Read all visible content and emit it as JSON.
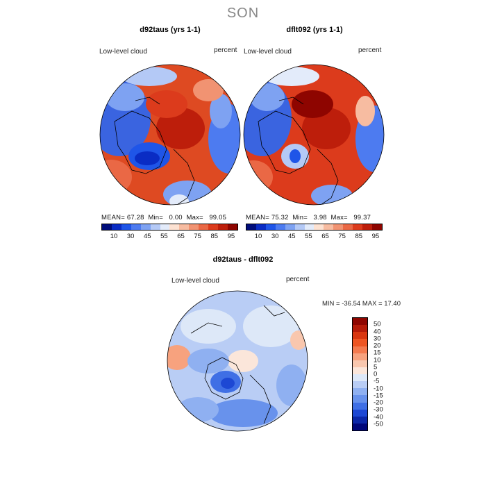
{
  "season": "SON",
  "panels": [
    {
      "title": "d92taus (yrs 1-1)",
      "variable": "Low-level cloud",
      "units": "percent",
      "stats": {
        "mean_label": "MEAN=",
        "mean": "67.28",
        "min_label": "Min=",
        "min": "0.00",
        "max_label": "Max=",
        "max": "99.05"
      }
    },
    {
      "title": "dflt092 (yrs 1-1)",
      "variable": "Low-level cloud",
      "units": "percent",
      "stats": {
        "mean_label": "MEAN=",
        "mean": "75.32",
        "min_label": "Min=",
        "min": "3.98",
        "max_label": "Max=",
        "max": "99.37"
      }
    },
    {
      "title": "d92taus - dflt092",
      "variable": "Low-level cloud",
      "units": "percent",
      "stats_line": "MIN = -36.54 MAX =  17.40"
    }
  ],
  "colorbar_abs": {
    "colors": [
      "#000d7a",
      "#0a2cc4",
      "#1f55e8",
      "#4d7bf0",
      "#7ea2f2",
      "#b4c9f6",
      "#e3ebfa",
      "#fde2d2",
      "#f7bca1",
      "#f19372",
      "#ea6845",
      "#dc3b1c",
      "#bd1e0b",
      "#8e0500"
    ],
    "ticks": [
      "10",
      "30",
      "45",
      "55",
      "65",
      "75",
      "85",
      "95"
    ]
  },
  "colorbar_diff": {
    "colors": [
      "#8e0500",
      "#b51a08",
      "#d9360f",
      "#ee5522",
      "#f47a4e",
      "#f7a27e",
      "#f9c7ae",
      "#fbe6da",
      "#dde8f8",
      "#b9cdf5",
      "#8fb0f1",
      "#6892ec",
      "#3f6fe5",
      "#1d48d4",
      "#0b27a8",
      "#00077a"
    ],
    "ticks": [
      "50",
      "40",
      "30",
      "20",
      "15",
      "10",
      "5",
      "0",
      "-5",
      "-10",
      "-15",
      "-20",
      "-30",
      "-40",
      "-50"
    ]
  }
}
